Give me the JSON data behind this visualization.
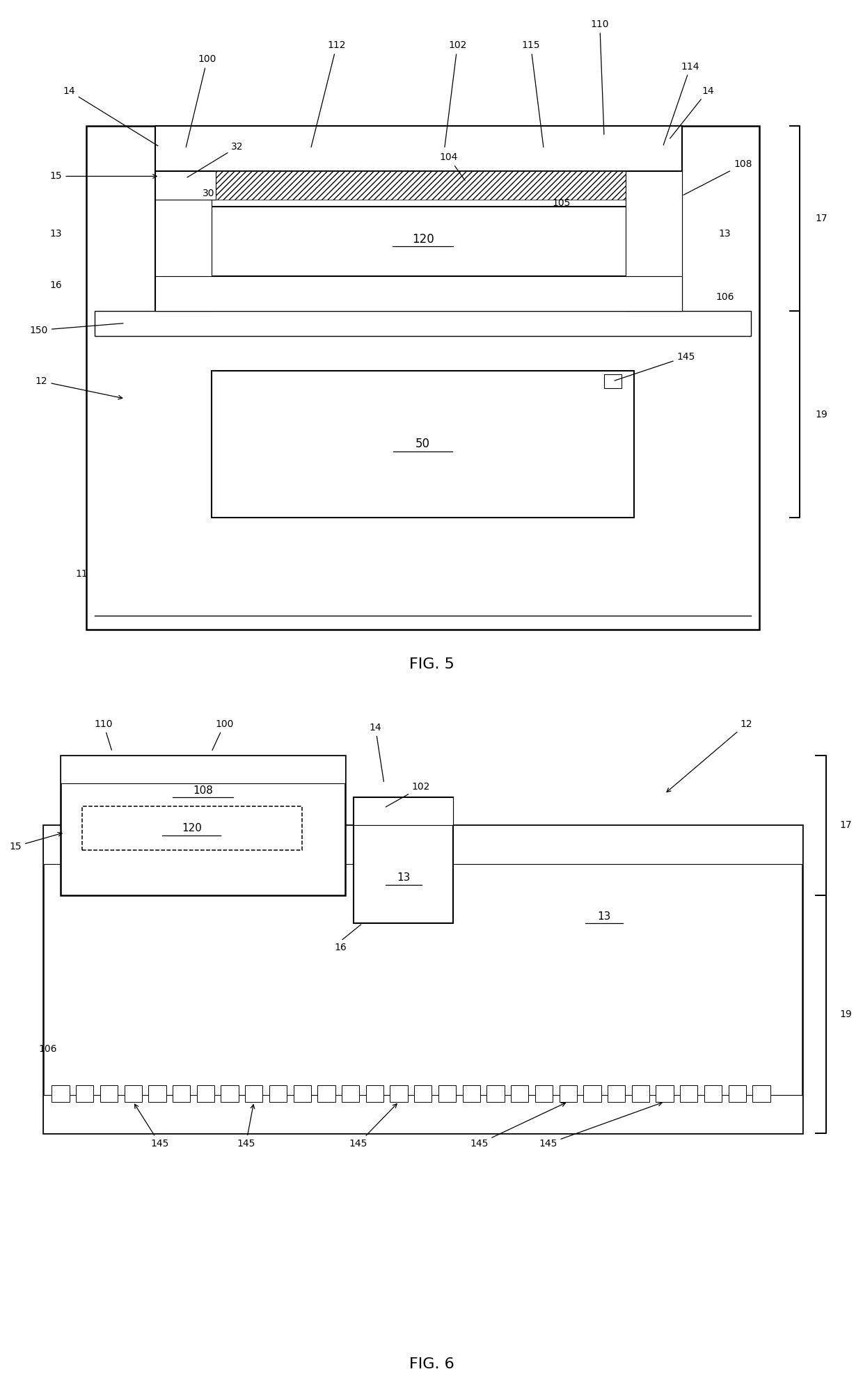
{
  "bg_color": "#ffffff",
  "line_color": "#000000",
  "fig5_title": "FIG. 5",
  "fig6_title": "FIG. 6"
}
